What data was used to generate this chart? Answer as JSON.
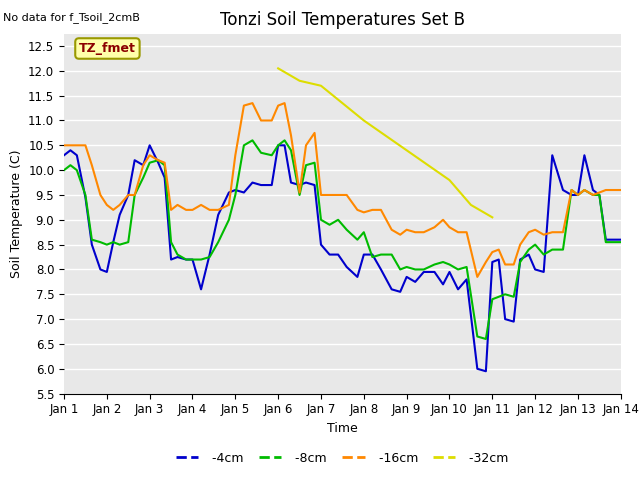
{
  "title": "Tonzi Soil Temperatures Set B",
  "no_data_label": "No data for f_Tsoil_2cmB",
  "tz_fmet_label": "TZ_fmet",
  "xlabel": "Time",
  "ylabel": "Soil Temperature (C)",
  "ylim": [
    5.5,
    12.75
  ],
  "xlim": [
    0,
    13
  ],
  "xtick_labels": [
    "Jan 1",
    "Jan 2",
    "Jan 3",
    "Jan 4",
    "Jan 5",
    "Jan 6",
    "Jan 7",
    "Jan 8",
    "Jan 9",
    "Jan 10",
    "Jan 11",
    "Jan 12",
    "Jan 13",
    "Jan 14"
  ],
  "bg_color": "#e8e8e8",
  "colors": {
    "4cm": "#0000cc",
    "8cm": "#00bb00",
    "16cm": "#ff8800",
    "32cm": "#dddd00"
  },
  "data_4cm_x": [
    0.0,
    0.15,
    0.3,
    0.5,
    0.65,
    0.85,
    1.0,
    1.15,
    1.3,
    1.5,
    1.65,
    1.85,
    2.0,
    2.2,
    2.35,
    2.5,
    2.65,
    2.85,
    3.0,
    3.2,
    3.4,
    3.6,
    3.85,
    4.0,
    4.2,
    4.4,
    4.6,
    4.85,
    5.0,
    5.15,
    5.3,
    5.5,
    5.65,
    5.85,
    6.0,
    6.2,
    6.4,
    6.6,
    6.85,
    7.0,
    7.2,
    7.4,
    7.65,
    7.85,
    8.0,
    8.2,
    8.4,
    8.65,
    8.85,
    9.0,
    9.2,
    9.4,
    9.65,
    9.85,
    10.0,
    10.15,
    10.3,
    10.5,
    10.65,
    10.85,
    11.0,
    11.2,
    11.4,
    11.65,
    11.85,
    12.0,
    12.15,
    12.35,
    12.5,
    12.65,
    12.85,
    13.0
  ],
  "data_4cm_y": [
    10.3,
    10.4,
    10.3,
    9.45,
    8.5,
    8.0,
    7.95,
    8.55,
    9.1,
    9.5,
    10.2,
    10.1,
    10.5,
    10.15,
    9.85,
    8.2,
    8.25,
    8.2,
    8.2,
    7.6,
    8.3,
    9.1,
    9.55,
    9.6,
    9.55,
    9.75,
    9.7,
    9.7,
    10.5,
    10.5,
    9.75,
    9.7,
    9.75,
    9.7,
    8.5,
    8.3,
    8.3,
    8.05,
    7.85,
    8.3,
    8.3,
    8.0,
    7.6,
    7.55,
    7.85,
    7.75,
    7.95,
    7.95,
    7.7,
    7.95,
    7.6,
    7.8,
    6.0,
    5.95,
    8.15,
    8.2,
    7.0,
    6.95,
    8.2,
    8.3,
    8.0,
    7.95,
    10.3,
    9.6,
    9.5,
    9.5,
    10.3,
    9.6,
    9.5,
    8.6,
    8.6,
    8.6
  ],
  "data_8cm_x": [
    0.0,
    0.15,
    0.3,
    0.5,
    0.65,
    0.85,
    1.0,
    1.15,
    1.3,
    1.5,
    1.65,
    1.85,
    2.0,
    2.2,
    2.35,
    2.5,
    2.65,
    2.85,
    3.0,
    3.2,
    3.4,
    3.6,
    3.85,
    4.0,
    4.2,
    4.4,
    4.6,
    4.85,
    5.0,
    5.15,
    5.3,
    5.5,
    5.65,
    5.85,
    6.0,
    6.2,
    6.4,
    6.6,
    6.85,
    7.0,
    7.2,
    7.4,
    7.65,
    7.85,
    8.0,
    8.2,
    8.4,
    8.65,
    8.85,
    9.0,
    9.2,
    9.4,
    9.65,
    9.85,
    10.0,
    10.15,
    10.3,
    10.5,
    10.65,
    10.85,
    11.0,
    11.2,
    11.4,
    11.65,
    11.85,
    12.0,
    12.15,
    12.35,
    12.5,
    12.65,
    12.85,
    13.0
  ],
  "data_8cm_y": [
    10.0,
    10.1,
    10.0,
    9.5,
    8.6,
    8.55,
    8.5,
    8.55,
    8.5,
    8.55,
    9.5,
    9.85,
    10.15,
    10.2,
    10.1,
    8.55,
    8.3,
    8.2,
    8.2,
    8.2,
    8.25,
    8.55,
    9.0,
    9.5,
    10.5,
    10.6,
    10.35,
    10.3,
    10.5,
    10.6,
    10.4,
    9.5,
    10.1,
    10.15,
    9.0,
    8.9,
    9.0,
    8.8,
    8.6,
    8.75,
    8.25,
    8.3,
    8.3,
    8.0,
    8.05,
    8.0,
    8.0,
    8.1,
    8.15,
    8.1,
    8.0,
    8.05,
    6.65,
    6.6,
    7.4,
    7.45,
    7.5,
    7.45,
    8.15,
    8.4,
    8.5,
    8.3,
    8.4,
    8.4,
    9.6,
    9.5,
    9.6,
    9.5,
    9.5,
    8.55,
    8.55,
    8.55
  ],
  "data_16cm_x": [
    0.0,
    0.15,
    0.3,
    0.5,
    0.65,
    0.85,
    1.0,
    1.15,
    1.3,
    1.5,
    1.65,
    1.85,
    2.0,
    2.2,
    2.35,
    2.5,
    2.65,
    2.85,
    3.0,
    3.2,
    3.4,
    3.6,
    3.85,
    4.0,
    4.2,
    4.4,
    4.6,
    4.85,
    5.0,
    5.15,
    5.3,
    5.5,
    5.65,
    5.85,
    6.0,
    6.2,
    6.4,
    6.6,
    6.85,
    7.0,
    7.2,
    7.4,
    7.65,
    7.85,
    8.0,
    8.2,
    8.4,
    8.65,
    8.85,
    9.0,
    9.2,
    9.4,
    9.65,
    9.85,
    10.0,
    10.15,
    10.3,
    10.5,
    10.65,
    10.85,
    11.0,
    11.2,
    11.4,
    11.65,
    11.85,
    12.0,
    12.15,
    12.35,
    12.5,
    12.65,
    12.85,
    13.0
  ],
  "data_16cm_y": [
    10.5,
    10.5,
    10.5,
    10.5,
    10.1,
    9.5,
    9.3,
    9.2,
    9.3,
    9.5,
    9.5,
    10.1,
    10.3,
    10.2,
    10.15,
    9.2,
    9.3,
    9.2,
    9.2,
    9.3,
    9.2,
    9.2,
    9.3,
    10.3,
    11.3,
    11.35,
    11.0,
    11.0,
    11.3,
    11.35,
    10.7,
    9.55,
    10.5,
    10.75,
    9.5,
    9.5,
    9.5,
    9.5,
    9.2,
    9.15,
    9.2,
    9.2,
    8.8,
    8.7,
    8.8,
    8.75,
    8.75,
    8.85,
    9.0,
    8.85,
    8.75,
    8.75,
    7.85,
    8.15,
    8.35,
    8.4,
    8.1,
    8.1,
    8.5,
    8.75,
    8.8,
    8.7,
    8.75,
    8.75,
    9.6,
    9.5,
    9.6,
    9.5,
    9.55,
    9.6,
    9.6,
    9.6
  ],
  "data_32cm_x": [
    5.0,
    5.5,
    6.0,
    6.5,
    7.0,
    7.5,
    8.0,
    8.5,
    9.0,
    9.5,
    10.0
  ],
  "data_32cm_y": [
    12.05,
    11.8,
    11.7,
    11.35,
    11.0,
    10.7,
    10.4,
    10.1,
    9.8,
    9.3,
    9.05
  ]
}
